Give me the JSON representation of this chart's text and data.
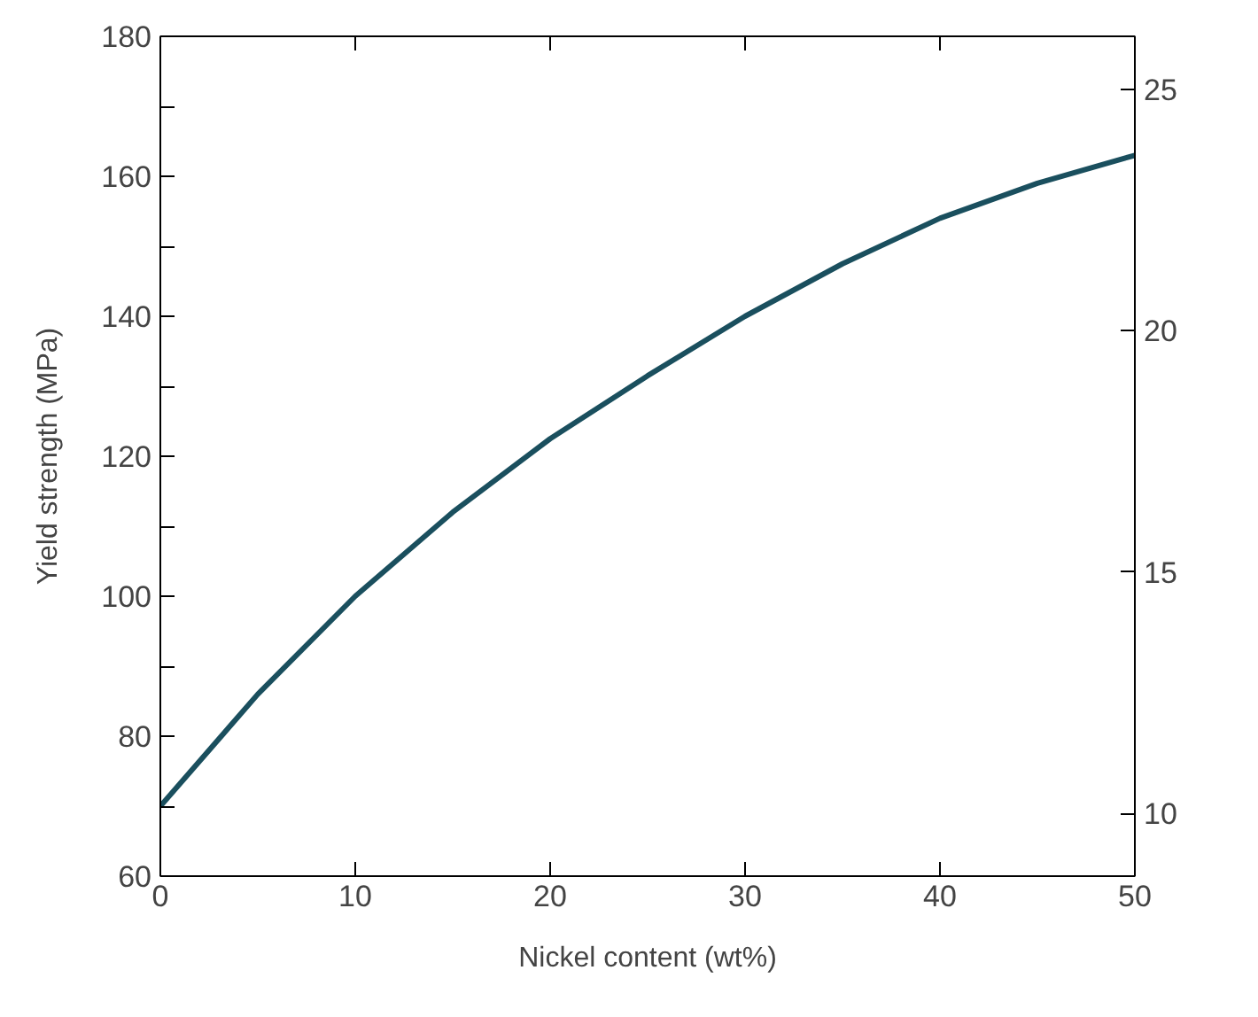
{
  "chart_data": {
    "type": "line",
    "xlabel": "Nickel content (wt%)",
    "ylabel": "Yield strength (MPa)",
    "x": [
      0,
      5,
      10,
      15,
      20,
      25,
      30,
      35,
      40,
      45,
      50
    ],
    "series": [
      {
        "color": "#1a4f5e",
        "values": [
          70,
          86,
          100,
          112,
          122.5,
          131.5,
          140,
          147.5,
          154,
          159,
          163
        ]
      }
    ],
    "xlim": [
      0,
      50
    ],
    "xticks": [
      0,
      10,
      20,
      30,
      40,
      50
    ],
    "ylim": [
      60,
      180
    ],
    "yticks": [
      60,
      {
        "value": 70,
        "label": null
      },
      80,
      {
        "value": 90,
        "label": null
      },
      100,
      {
        "value": 110,
        "label": null
      },
      120,
      {
        "value": 130,
        "label": null
      },
      140,
      {
        "value": 150,
        "label": null
      },
      160,
      {
        "value": 170,
        "label": null
      },
      180
    ],
    "y2lim": [
      8.7,
      26.1
    ],
    "y2ticks": [
      10,
      15,
      20,
      25
    ],
    "grid": false,
    "marker": "none",
    "line_style": "solid"
  }
}
